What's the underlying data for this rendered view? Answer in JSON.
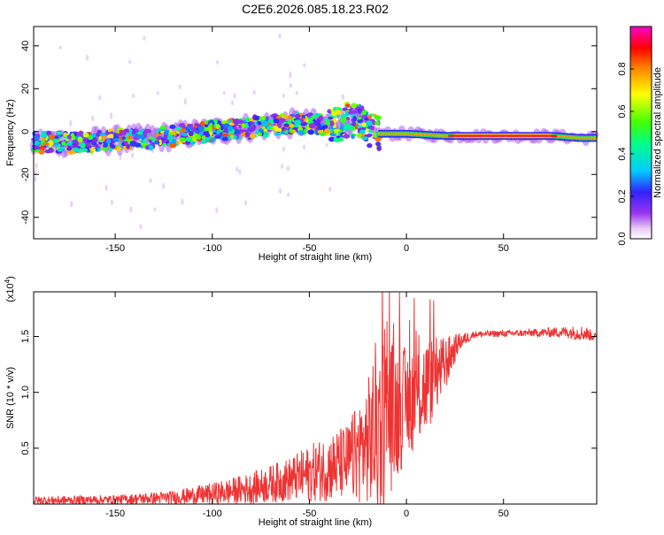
{
  "figure": {
    "title": "C2E6.2026.085.18.23.R02"
  },
  "chart_data": [
    {
      "type": "heatmap",
      "xlabel": "Height of straight line (km)",
      "ylabel": "Frequency (Hz)",
      "xlim": [
        -192,
        98
      ],
      "ylim": [
        -50,
        49
      ],
      "xticks": [
        -150,
        -100,
        -50,
        0,
        50
      ],
      "yticks": [
        -40,
        -20,
        0,
        20,
        40
      ],
      "colorbar": {
        "label": "Normalized spectral amplitude",
        "ticks": [
          "0.0",
          "0.2",
          "0.4",
          "0.6",
          "0.8"
        ],
        "range": [
          0,
          1
        ],
        "colormap": "rainbow (white-violet-blue-cyan-green-yellow-red-magenta)"
      },
      "ridge": [
        {
          "x": -192,
          "f": -5
        },
        {
          "x": -170,
          "f": -5
        },
        {
          "x": -150,
          "f": -4
        },
        {
          "x": -130,
          "f": -3
        },
        {
          "x": -110,
          "f": -1
        },
        {
          "x": -90,
          "f": 1
        },
        {
          "x": -70,
          "f": 3
        },
        {
          "x": -55,
          "f": 4
        },
        {
          "x": -40,
          "f": 3
        },
        {
          "x": -30,
          "f": 5
        },
        {
          "x": -25,
          "f": 6
        },
        {
          "x": -20,
          "f": 2
        },
        {
          "x": -15,
          "f": -1
        },
        {
          "x": 0,
          "f": -1
        },
        {
          "x": 20,
          "f": -2
        },
        {
          "x": 50,
          "f": -2
        },
        {
          "x": 75,
          "f": -2
        },
        {
          "x": 90,
          "f": -3
        },
        {
          "x": 98,
          "f": -3
        }
      ]
    },
    {
      "type": "line",
      "xlabel": "Height of straight line (km)",
      "ylabel": "SNR (10 * v/v)",
      "multiplier": "(x10",
      "multiplier_exp": "4",
      "multiplier_close": ")",
      "xlim": [
        -192,
        98
      ],
      "ylim": [
        0,
        1.9
      ],
      "xticks": [
        -150,
        -100,
        -50,
        0,
        50
      ],
      "yticks": [
        0.5,
        1.0,
        1.5
      ],
      "ytick_labels": [
        "0.5",
        "1.0",
        "1.5"
      ],
      "color": "#ee3333",
      "envelope": [
        {
          "x": -192,
          "base": 0.03,
          "amp": 0.04
        },
        {
          "x": -150,
          "base": 0.04,
          "amp": 0.04
        },
        {
          "x": -120,
          "base": 0.06,
          "amp": 0.06
        },
        {
          "x": -100,
          "base": 0.09,
          "amp": 0.1
        },
        {
          "x": -80,
          "base": 0.14,
          "amp": 0.14
        },
        {
          "x": -60,
          "base": 0.22,
          "amp": 0.2
        },
        {
          "x": -45,
          "base": 0.3,
          "amp": 0.28
        },
        {
          "x": -30,
          "base": 0.38,
          "amp": 0.35
        },
        {
          "x": -20,
          "base": 0.55,
          "amp": 0.55
        },
        {
          "x": -15,
          "base": 0.7,
          "amp": 0.85
        },
        {
          "x": -8,
          "base": 0.8,
          "amp": 0.7
        },
        {
          "x": 0,
          "base": 0.9,
          "amp": 0.5
        },
        {
          "x": 10,
          "base": 1.05,
          "amp": 0.45
        },
        {
          "x": 20,
          "base": 1.25,
          "amp": 0.25
        },
        {
          "x": 27,
          "base": 1.45,
          "amp": 0.08
        },
        {
          "x": 35,
          "base": 1.52,
          "amp": 0.03
        },
        {
          "x": 60,
          "base": 1.53,
          "amp": 0.03
        },
        {
          "x": 80,
          "base": 1.54,
          "amp": 0.05
        },
        {
          "x": 92,
          "base": 1.53,
          "amp": 0.07
        },
        {
          "x": 98,
          "base": 1.49,
          "amp": 0.03
        }
      ]
    }
  ]
}
